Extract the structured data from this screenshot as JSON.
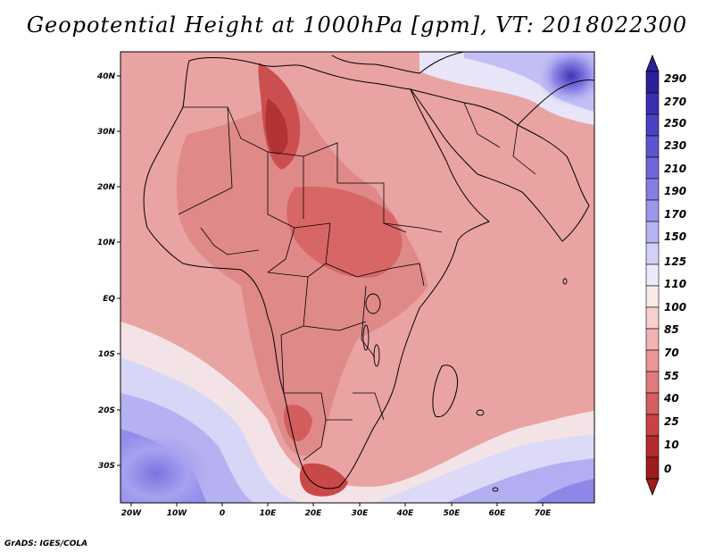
{
  "title": "Geopotential Height at 1000hPa [gpm], VT: 2018022300",
  "credit": "GrADS: IGES/COLA",
  "map": {
    "variable": "Geopotential Height",
    "level": "1000hPa",
    "units": "gpm",
    "valid_time": "2018022300",
    "lon_labels": [
      "20W",
      "10W",
      "0",
      "10E",
      "20E",
      "30E",
      "40E",
      "50E",
      "60E",
      "70E"
    ],
    "lat_labels": [
      "40N",
      "30N",
      "20N",
      "10N",
      "EQ",
      "10S",
      "20S",
      "30S"
    ]
  },
  "colorbar": {
    "labels": [
      "290",
      "270",
      "250",
      "230",
      "210",
      "190",
      "170",
      "150",
      "125",
      "110",
      "100",
      "85",
      "70",
      "55",
      "40",
      "25",
      "10",
      "0"
    ],
    "colors": [
      "#2c1f9a",
      "#3a2fb0",
      "#4a40c2",
      "#5d55cf",
      "#7068da",
      "#857fe4",
      "#9c97ec",
      "#b7b3f2",
      "#d2d0f7",
      "#eceaf9",
      "#fbe9e9",
      "#f7cfcf",
      "#f1b3b3",
      "#e99797",
      "#df7b7b",
      "#d55f5f",
      "#c84444",
      "#b52b2b",
      "#9e1c1c"
    ]
  }
}
